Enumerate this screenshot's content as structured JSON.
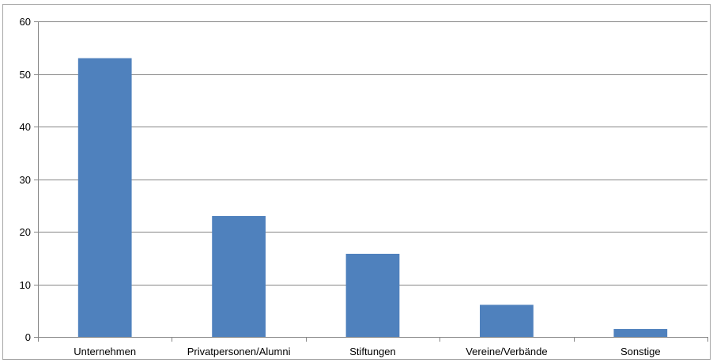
{
  "chart_data": {
    "type": "bar",
    "categories": [
      "Unternehmen",
      "Privatpersonen/Alumni",
      "Stiftungen",
      "Vereine/Verbände",
      "Sonstige"
    ],
    "values": [
      53,
      23,
      15.8,
      6.1,
      1.5
    ],
    "ylim": [
      0,
      60
    ],
    "yticks": [
      0,
      10,
      20,
      30,
      40,
      50,
      60
    ],
    "grid": true,
    "colors": {
      "bar": "#4f81bd",
      "grid": "#868686",
      "axis": "#868686"
    }
  }
}
